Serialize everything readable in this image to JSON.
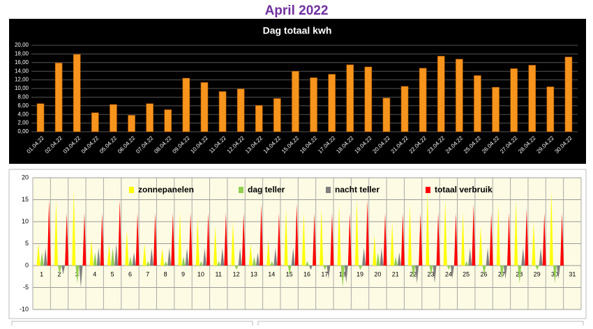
{
  "title": "April 2022",
  "chart_data": [
    {
      "type": "bar",
      "title": "Dag totaal kwh",
      "color": "#f7941d",
      "categories": [
        "01.04.22",
        "02.04.22",
        "03.04.22",
        "04.04.22",
        "05.04.22",
        "06.04.22",
        "07.04.22",
        "08.04.22",
        "09.04.22",
        "10.04.22",
        "11.04.22",
        "12.04.22",
        "13.04.22",
        "14.04.22",
        "15.04.22",
        "16.04.22",
        "17.04.22",
        "18.04.22",
        "19.04.22",
        "20.04.22",
        "21.04.22",
        "22.04.22",
        "23.04.22",
        "24.04.22",
        "25.04.22",
        "26.04.22",
        "27.04.22",
        "28.04.22",
        "29.04.22",
        "30.04.22"
      ],
      "values": [
        6.5,
        15.9,
        17.9,
        4.4,
        6.3,
        3.8,
        6.5,
        5.1,
        12.4,
        11.4,
        9.3,
        9.9,
        6.1,
        7.7,
        14.0,
        12.5,
        13.3,
        15.5,
        15.0,
        7.8,
        10.5,
        14.7,
        17.5,
        16.8,
        13.0,
        10.3,
        14.6,
        15.4,
        10.4,
        17.3
      ],
      "ylim": [
        0,
        20
      ],
      "yticks": [
        {
          "value": 0,
          "label": "0,00"
        },
        {
          "value": 2,
          "label": "2,00"
        },
        {
          "value": 4,
          "label": "4,00"
        },
        {
          "value": 6,
          "label": "6,00"
        },
        {
          "value": 8,
          "label": "8,00"
        },
        {
          "value": 10,
          "label": "10,00"
        },
        {
          "value": 12,
          "label": "12,00"
        },
        {
          "value": 14,
          "label": "14,00"
        },
        {
          "value": 16,
          "label": "16,00"
        },
        {
          "value": 18,
          "label": "18,00"
        },
        {
          "value": 20,
          "label": "20,00"
        }
      ],
      "grid": true
    },
    {
      "type": "spike",
      "categories": [
        "1",
        "2",
        "3",
        "4",
        "5",
        "6",
        "7",
        "8",
        "9",
        "10",
        "11",
        "12",
        "13",
        "14",
        "15",
        "16",
        "17",
        "18",
        "19",
        "20",
        "21",
        "22",
        "23",
        "24",
        "25",
        "26",
        "27",
        "28",
        "29",
        "30",
        "31"
      ],
      "series": [
        {
          "name": "zonnepanelen",
          "color": "#ffff00",
          "values": [
            5,
            15,
            17,
            6,
            5,
            8,
            5,
            4,
            12,
            11,
            9,
            10,
            5,
            6,
            13,
            12,
            13,
            14,
            15,
            7,
            10,
            14,
            17,
            15,
            12,
            9,
            14,
            15,
            10,
            17,
            null
          ]
        },
        {
          "name": "dag teller",
          "color": "#92d050",
          "values": [
            3,
            -2,
            -4,
            3,
            4,
            2,
            1,
            1,
            2,
            1,
            1,
            -1,
            2,
            1,
            -2,
            1,
            -1,
            -5,
            -1,
            3,
            2,
            -3,
            -2,
            -1,
            1,
            -2,
            -3,
            -4,
            -1,
            -4,
            null
          ]
        },
        {
          "name": "nacht teller",
          "color": "#808080",
          "values": [
            4,
            -2,
            -5,
            4,
            5,
            3,
            4,
            4,
            4,
            4,
            4,
            4,
            3,
            4,
            4,
            -1,
            -3,
            -4,
            4,
            4,
            3,
            -4,
            -4,
            -3,
            4,
            4,
            -3,
            4,
            4,
            -3,
            null
          ]
        },
        {
          "name": "totaal verbruik",
          "color": "#ff0000",
          "values": [
            15,
            12,
            12,
            12,
            15,
            12,
            12,
            12,
            12,
            12,
            12,
            12,
            14,
            12,
            14,
            12,
            12,
            12,
            15,
            12,
            12,
            12,
            12,
            12,
            14,
            12,
            12,
            13,
            12,
            12,
            null
          ]
        }
      ],
      "ylim": [
        -10,
        20
      ],
      "yticks": [
        -10,
        -5,
        0,
        5,
        10,
        15,
        20
      ],
      "grid": true
    }
  ]
}
